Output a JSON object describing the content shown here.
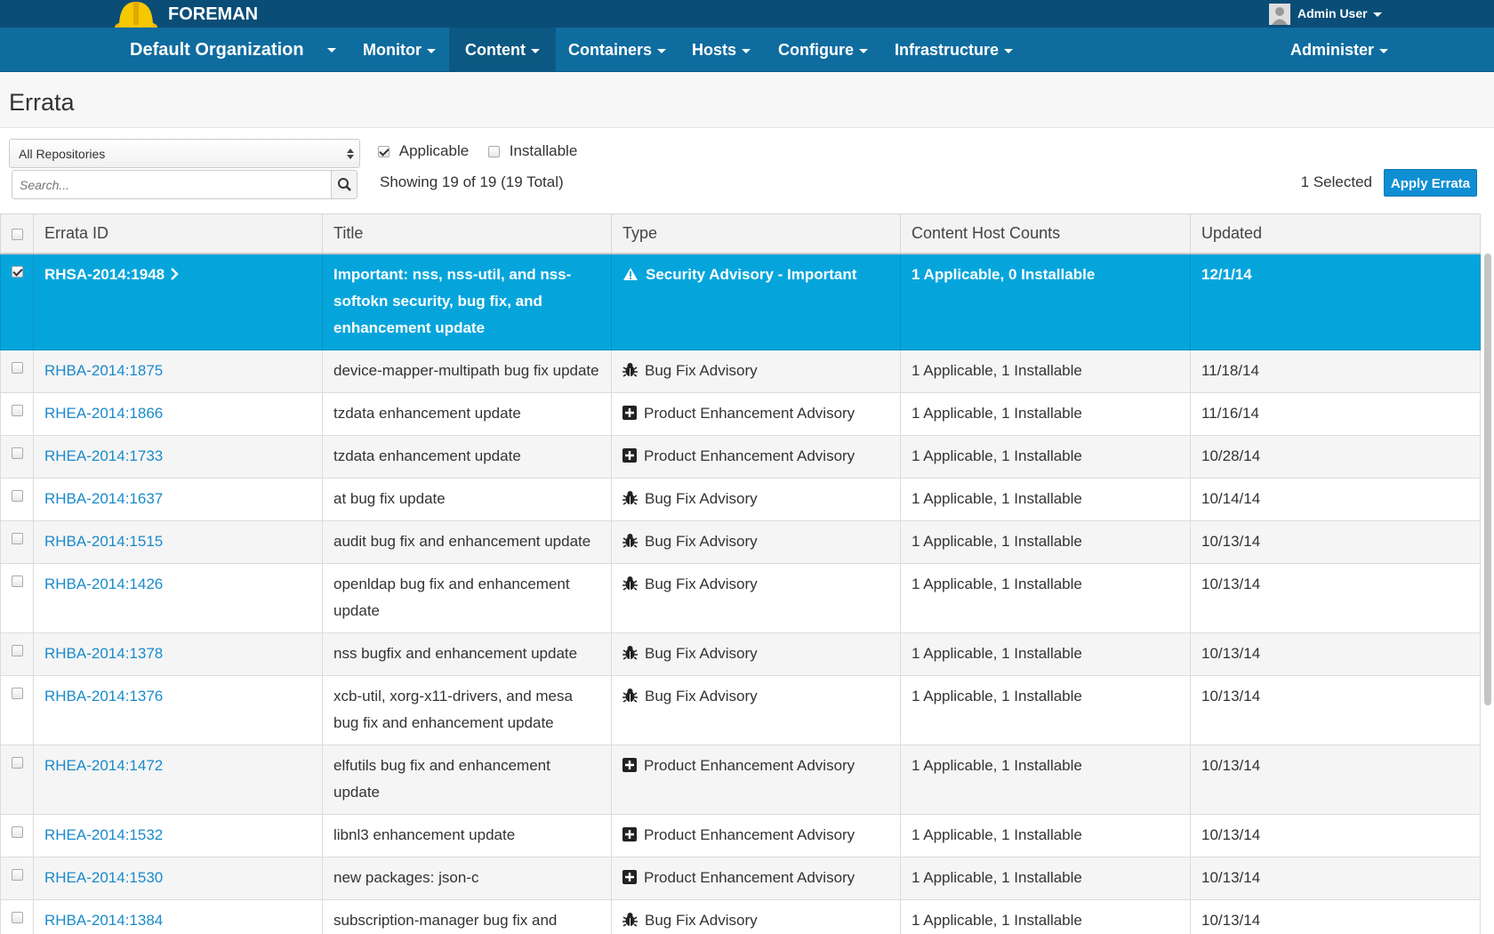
{
  "header": {
    "brand": "FOREMAN",
    "user": "Admin User",
    "organization": "Default Organization",
    "nav": [
      "Monitor",
      "Content",
      "Containers",
      "Hosts",
      "Configure",
      "Infrastructure"
    ],
    "admin": "Administer"
  },
  "page": {
    "title": "Errata"
  },
  "filters": {
    "repository": "All Repositories",
    "applicable": "Applicable",
    "installable": "Installable",
    "search_placeholder": "Search...",
    "showing": "Showing 19 of 19 (19 Total)",
    "selected": "1 Selected",
    "apply_button": "Apply Errata"
  },
  "table": {
    "columns": [
      "Errata ID",
      "Title",
      "Type",
      "Content Host Counts",
      "Updated"
    ],
    "rows": [
      [
        "RHSA-2014:1948",
        "Important: nss, nss-util, and nss-softokn security, bug fix, and enhancement update",
        "Security Advisory - Important",
        "1 Applicable, 0 Installable",
        "12/1/14"
      ],
      [
        "RHBA-2014:1875",
        "device-mapper-multipath bug fix update",
        "Bug Fix Advisory",
        "1 Applicable, 1 Installable",
        "11/18/14"
      ],
      [
        "RHEA-2014:1866",
        "tzdata enhancement update",
        "Product Enhancement Advisory",
        "1 Applicable, 1 Installable",
        "11/16/14"
      ],
      [
        "RHEA-2014:1733",
        "tzdata enhancement update",
        "Product Enhancement Advisory",
        "1 Applicable, 1 Installable",
        "10/28/14"
      ],
      [
        "RHBA-2014:1637",
        "at bug fix update",
        "Bug Fix Advisory",
        "1 Applicable, 1 Installable",
        "10/14/14"
      ],
      [
        "RHBA-2014:1515",
        "audit bug fix and enhancement update",
        "Bug Fix Advisory",
        "1 Applicable, 1 Installable",
        "10/13/14"
      ],
      [
        "RHBA-2014:1426",
        "openldap bug fix and enhancement update",
        "Bug Fix Advisory",
        "1 Applicable, 1 Installable",
        "10/13/14"
      ],
      [
        "RHBA-2014:1378",
        "nss bugfix and enhancement update",
        "Bug Fix Advisory",
        "1 Applicable, 1 Installable",
        "10/13/14"
      ],
      [
        "RHBA-2014:1376",
        "xcb-util, xorg-x11-drivers, and mesa bug fix and enhancement update",
        "Bug Fix Advisory",
        "1 Applicable, 1 Installable",
        "10/13/14"
      ],
      [
        "RHEA-2014:1472",
        "elfutils bug fix and enhancement update",
        "Product Enhancement Advisory",
        "1 Applicable, 1 Installable",
        "10/13/14"
      ],
      [
        "RHEA-2014:1532",
        "libnl3 enhancement update",
        "Product Enhancement Advisory",
        "1 Applicable, 1 Installable",
        "10/13/14"
      ],
      [
        "RHEA-2014:1530",
        "new packages: json-c",
        "Product Enhancement Advisory",
        "1 Applicable, 1 Installable",
        "10/13/14"
      ],
      [
        "RHBA-2014:1384",
        "subscription-manager bug fix and",
        "Bug Fix Advisory",
        "1 Applicable, 1 Installable",
        "10/13/14"
      ]
    ]
  }
}
